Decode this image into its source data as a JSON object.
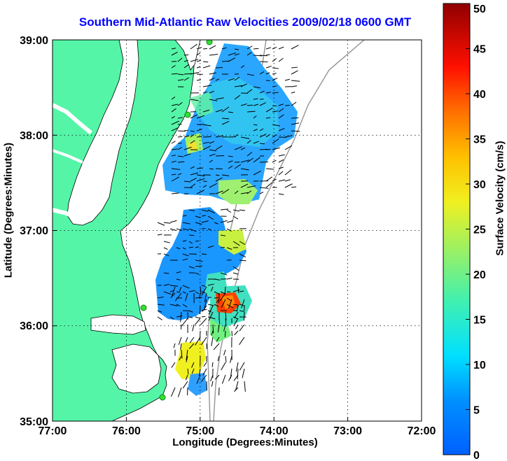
{
  "title": "Southern Mid-Atlantic Raw Velocities 2009/02/18 0600 GMT",
  "xlabel": "Longitude (Degrees:Minutes)",
  "ylabel": "Latitude (Degrees:Minutes)",
  "colorbar": {
    "label": "Surface Velocity (cm/s)",
    "ticks": [
      "0",
      "5",
      "10",
      "15",
      "20",
      "25",
      "30",
      "35",
      "40",
      "45",
      "50"
    ],
    "range": [
      0,
      50
    ]
  },
  "axes": {
    "x_ticks": [
      "77:00",
      "76:00",
      "75:00",
      "74:00",
      "73:00",
      "72:00"
    ],
    "y_ticks": [
      "39:00",
      "38:00",
      "37:00",
      "36:00",
      "35:00"
    ],
    "xlim": [
      -77,
      -72
    ],
    "ylim": [
      35,
      39
    ],
    "grid": "dotted"
  },
  "colors": {
    "land": "#55f5a8",
    "title": "#0000ff",
    "coast_outline": "#000000",
    "bathymetry": "#9a9a9a",
    "station": "#33dd33"
  }
}
